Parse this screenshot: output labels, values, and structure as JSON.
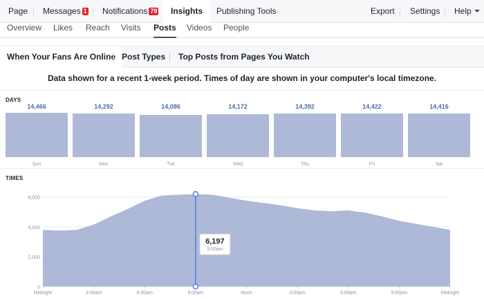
{
  "top_nav": {
    "page": "Page",
    "messages": "Messages",
    "messages_badge": "1",
    "notifications": "Notifications",
    "notifications_badge": "79",
    "insights": "Insights",
    "publishing_tools": "Publishing Tools",
    "export": "Export",
    "settings": "Settings",
    "help": "Help"
  },
  "sub_nav": [
    "Overview",
    "Likes",
    "Reach",
    "Visits",
    "Posts",
    "Videos",
    "People"
  ],
  "tabs": [
    "When Your Fans Are Online",
    "Post Types",
    "Top Posts from Pages You Watch"
  ],
  "note": "Data shown for a recent 1-week period. Times of day are shown in your computer's local timezone.",
  "days_section": {
    "title": "DAYS",
    "days": [
      {
        "label": "Sun",
        "value": "14,466",
        "n": 14466
      },
      {
        "label": "Mon",
        "value": "14,292",
        "n": 14292
      },
      {
        "label": "Tue",
        "value": "14,086",
        "n": 14086
      },
      {
        "label": "Wed",
        "value": "14,172",
        "n": 14172
      },
      {
        "label": "Thu",
        "value": "14,392",
        "n": 14392
      },
      {
        "label": "Fri",
        "value": "14,422",
        "n": 14422
      },
      {
        "label": "Sat",
        "value": "14,416",
        "n": 14416
      }
    ]
  },
  "times_section": {
    "title": "TIMES",
    "tooltip": {
      "value": "6,197",
      "time": "9:00am"
    }
  },
  "chart_data": {
    "type": "area",
    "title": "TIMES",
    "xlabel": "",
    "ylabel": "",
    "x_tick_labels": [
      "Midnight",
      "3:00am",
      "6:00am",
      "9:00am",
      "Noon",
      "3:00pm",
      "6:00pm",
      "9:00pm",
      "Midnight"
    ],
    "y_tick_labels": [
      "0",
      "2,000",
      "4,000",
      "6,000"
    ],
    "ylim": [
      0,
      6400
    ],
    "x": [
      "12am",
      "1am",
      "2am",
      "3am",
      "4am",
      "5am",
      "6am",
      "7am",
      "8am",
      "9am",
      "10am",
      "11am",
      "12pm",
      "1pm",
      "2pm",
      "3pm",
      "4pm",
      "5pm",
      "6pm",
      "7pm",
      "8pm",
      "9pm",
      "10pm",
      "11pm",
      "12am"
    ],
    "values": [
      3800,
      3750,
      3800,
      4150,
      4700,
      5200,
      5750,
      6100,
      6150,
      6197,
      6150,
      5950,
      5750,
      5600,
      5450,
      5250,
      5100,
      5050,
      5100,
      4950,
      4700,
      4400,
      4200,
      4000,
      3800
    ],
    "grid": true,
    "color": "#adb9d6",
    "highlight": {
      "x": "9:00am",
      "value": 6197
    }
  }
}
